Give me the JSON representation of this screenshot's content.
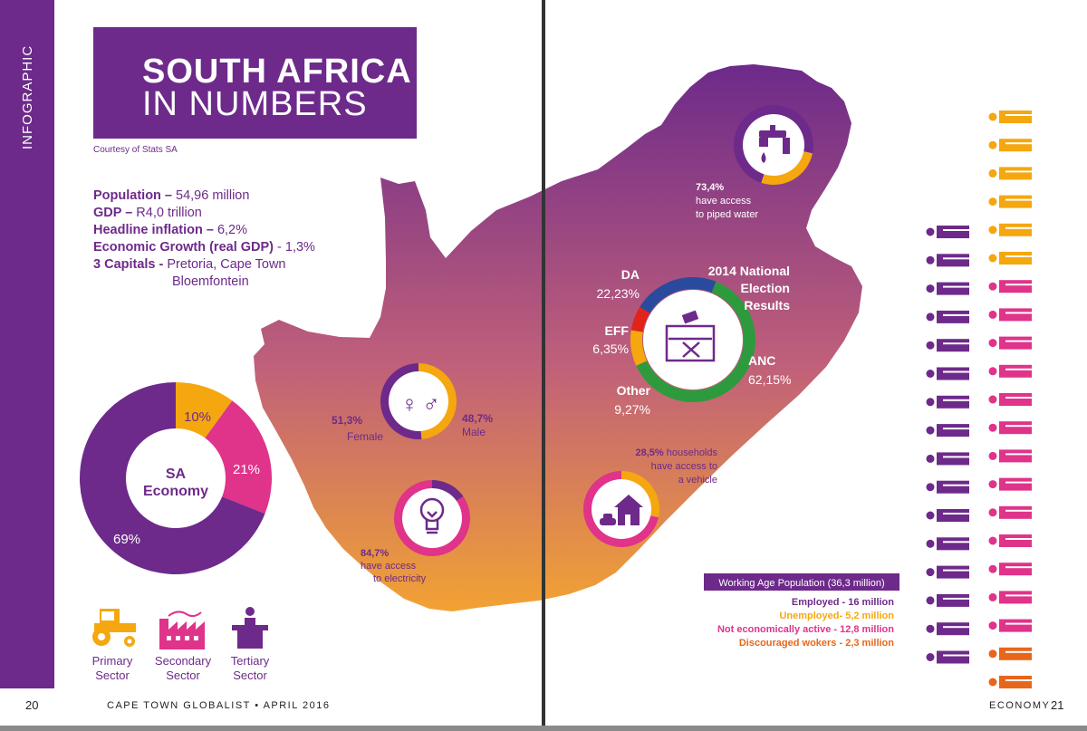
{
  "sidebar_label": "INFOGRAPHIC",
  "title_line1": "SOUTH AFRICA",
  "title_line2": "IN NUMBERS",
  "courtesy": "Courtesy of Stats SA",
  "stats": [
    {
      "label": "Population –",
      "value": " 54,96 million"
    },
    {
      "label": "GDP –",
      "value": " R4,0 trillion"
    },
    {
      "label": "Headline inflation –",
      "value": " 6,2%"
    },
    {
      "label": "Economic Growth (real GDP)",
      "value": " - 1,3%"
    },
    {
      "label": "3 Capitals -",
      "value": " Pretoria, Cape Town"
    }
  ],
  "stats_extra": "Bloemfontein",
  "economy": {
    "center_line1": "SA",
    "center_line2": "Economy",
    "slices": [
      {
        "label": "10%",
        "value": 10,
        "color": "#f5a70f"
      },
      {
        "label": "21%",
        "value": 21,
        "color": "#e0338a"
      },
      {
        "label": "69%",
        "value": 69,
        "color": "#6d2a8a"
      }
    ],
    "sectors": [
      {
        "line1": "Primary",
        "line2": "Sector",
        "icon": "tractor-icon",
        "color": "#f5a70f"
      },
      {
        "line1": "Secondary",
        "line2": "Sector",
        "icon": "factory-icon",
        "color": "#e0338a"
      },
      {
        "line1": "Tertiary",
        "line2": "Sector",
        "icon": "office-desk-icon",
        "color": "#6d2a8a"
      }
    ]
  },
  "gender": {
    "female_pct": "51,3%",
    "female_label": "Female",
    "male_pct": "48,7%",
    "male_label": "Male",
    "female_value": 51.3
  },
  "electricity": {
    "pct": "84,7%",
    "line1": "have access",
    "line2": "to electricity",
    "value": 84.7
  },
  "water": {
    "pct": "73,4%",
    "line1": "have access",
    "line2": "to piped water",
    "value": 73.4
  },
  "vehicle": {
    "line1_pct": "28,5%",
    "line1_rest": " households",
    "line2": "have access to",
    "line3": "a vehicle",
    "value": 28.5
  },
  "election": {
    "title_lines": [
      "2014 National",
      "Election",
      "Results"
    ],
    "parties": [
      {
        "name": "DA",
        "pct": "22,23%",
        "value": 22.23,
        "color": "#2a4a9e"
      },
      {
        "name": "ANC",
        "pct": "62,15%",
        "value": 62.15,
        "color": "#2e9a3e"
      },
      {
        "name": "Other",
        "pct": "9,27%",
        "value": 9.27,
        "color": "#f5a70f"
      },
      {
        "name": "EFF",
        "pct": "6,35%",
        "value": 6.35,
        "color": "#e2231a"
      }
    ]
  },
  "workforce": {
    "title": "Working Age Population (36,3 million)",
    "lines": [
      {
        "text": "Employed - 16 million",
        "color": "#6d2a8a"
      },
      {
        "text": "Unemployed- 5,2 million",
        "color": "#f5a70f"
      },
      {
        "text": "Not economically active - 12,8 million",
        "color": "#e0338a"
      },
      {
        "text": "Discouraged wokers - 2,3 million",
        "color": "#e8661a"
      }
    ]
  },
  "footer_left": "CAPE TOWN GLOBALIST • APRIL 2016",
  "footer_right": "ECONOMY",
  "page_left": "20",
  "page_right": "21",
  "colors": {
    "purple": "#6d2a8a",
    "orange": "#f5a70f",
    "pink": "#e0338a",
    "dark_orange": "#e8661a"
  }
}
